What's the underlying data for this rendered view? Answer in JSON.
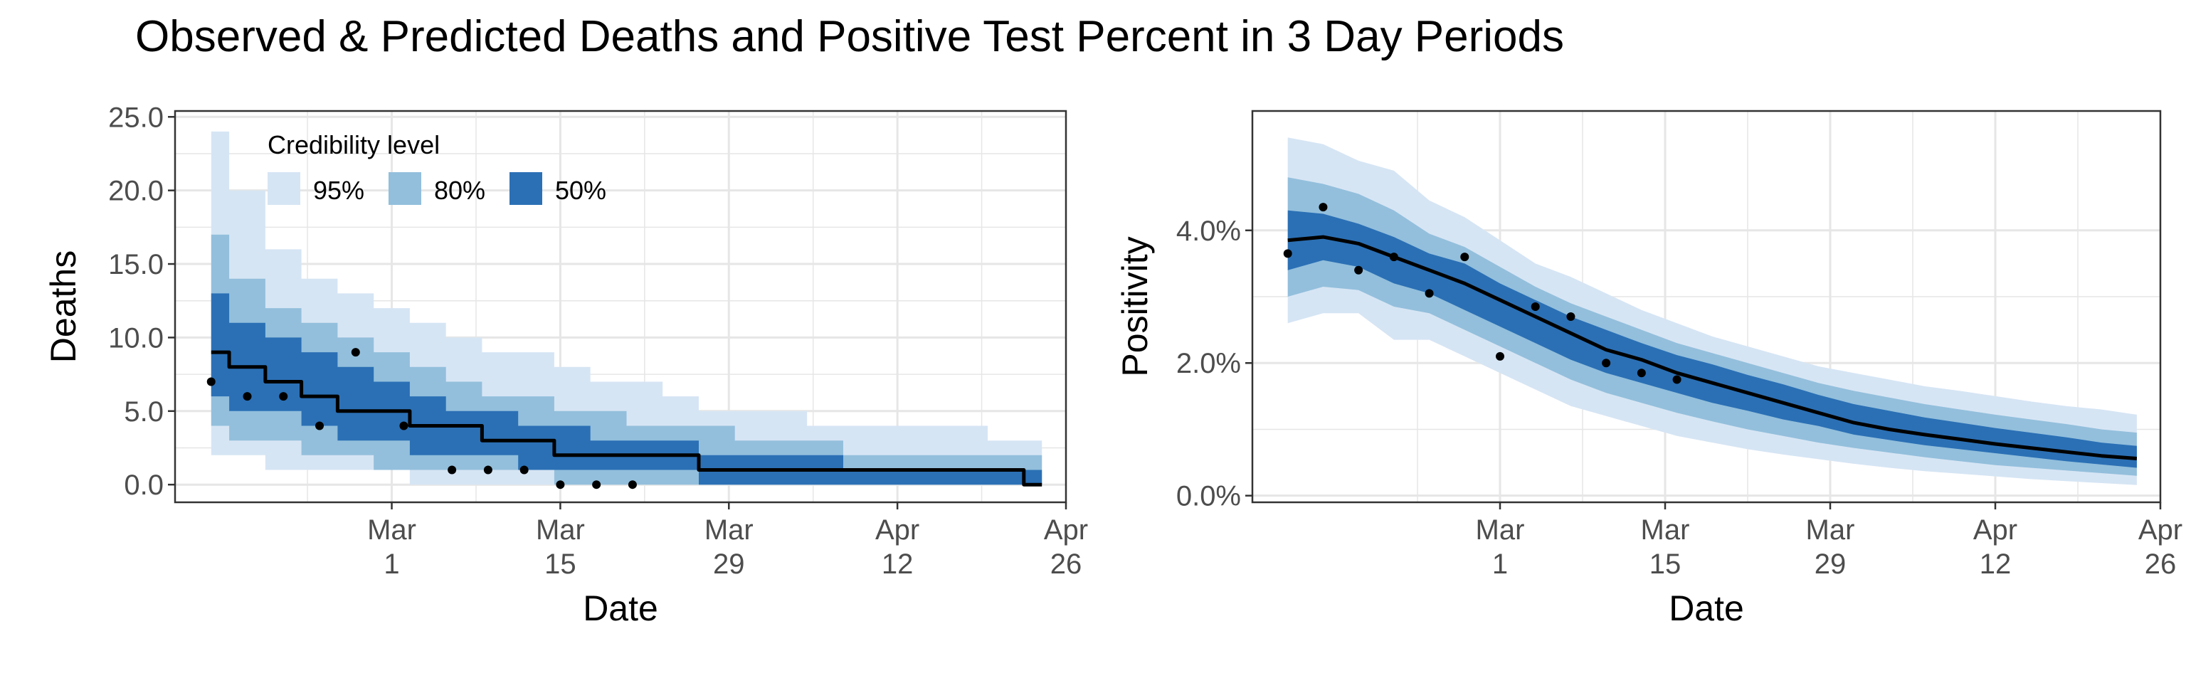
{
  "figure": {
    "title": "Observed & Predicted Deaths and Positive Test Percent in 3 Day Periods"
  },
  "colors": {
    "band95": "#d6e5f4",
    "band80": "#93bfdc",
    "band50": "#2b70b5",
    "median": "#000000",
    "points": "#000000",
    "grid": "#e6e6e6",
    "axis": "#333333"
  },
  "chart_data": [
    {
      "type": "area",
      "xlabel": "Date",
      "ylabel": "Deaths",
      "xlim": [
        "2020-02-12",
        "2020-04-26"
      ],
      "ylim": [
        -1.2,
        25.4
      ],
      "x_ticks": [
        {
          "date": "2020-03-01",
          "month": "Mar",
          "day": "1"
        },
        {
          "date": "2020-03-15",
          "month": "Mar",
          "day": "15"
        },
        {
          "date": "2020-03-29",
          "month": "Mar",
          "day": "29"
        },
        {
          "date": "2020-04-12",
          "month": "Apr",
          "day": "12"
        },
        {
          "date": "2020-04-26",
          "month": "Apr",
          "day": "26"
        }
      ],
      "y_ticks": [
        {
          "value": 0,
          "label": "0.0"
        },
        {
          "value": 5,
          "label": "5.0"
        },
        {
          "value": 10,
          "label": "10.0"
        },
        {
          "value": 15,
          "label": "15.0"
        },
        {
          "value": 20,
          "label": "20.0"
        },
        {
          "value": 25,
          "label": "25.0"
        }
      ],
      "legend": {
        "title": "Credibility level",
        "position": "top-left",
        "items": [
          {
            "label": "95%",
            "color": "#d6e5f4"
          },
          {
            "label": "80%",
            "color": "#93bfdc"
          },
          {
            "label": "50%",
            "color": "#2b70b5"
          }
        ]
      },
      "step": true,
      "dates": [
        "2020-02-15",
        "2020-02-18",
        "2020-02-21",
        "2020-02-24",
        "2020-02-27",
        "2020-03-01",
        "2020-03-04",
        "2020-03-07",
        "2020-03-10",
        "2020-03-13",
        "2020-03-16",
        "2020-03-19",
        "2020-03-22",
        "2020-03-25",
        "2020-03-28",
        "2020-03-31",
        "2020-04-03",
        "2020-04-06",
        "2020-04-09",
        "2020-04-12",
        "2020-04-15",
        "2020-04-18",
        "2020-04-21",
        "2020-04-24"
      ],
      "median": [
        9,
        8,
        7,
        6,
        5,
        5,
        4,
        4,
        3,
        3,
        2,
        2,
        2,
        2,
        1,
        1,
        1,
        1,
        1,
        1,
        1,
        1,
        1,
        0
      ],
      "lo95": [
        2,
        2,
        1,
        1,
        1,
        1,
        0,
        0,
        0,
        0,
        0,
        0,
        0,
        0,
        0,
        0,
        0,
        0,
        0,
        0,
        0,
        0,
        0,
        0
      ],
      "hi95": [
        24,
        20,
        16,
        14,
        13,
        12,
        11,
        10,
        9,
        9,
        8,
        7,
        7,
        6,
        5,
        5,
        5,
        4,
        4,
        4,
        4,
        4,
        3,
        3
      ],
      "lo80": [
        4,
        3,
        3,
        2,
        2,
        1,
        1,
        1,
        1,
        1,
        0,
        0,
        0,
        0,
        0,
        0,
        0,
        0,
        0,
        0,
        0,
        0,
        0,
        0
      ],
      "hi80": [
        17,
        14,
        12,
        11,
        10,
        9,
        8,
        7,
        6,
        6,
        5,
        5,
        4,
        4,
        4,
        3,
        3,
        3,
        2,
        2,
        2,
        2,
        2,
        2
      ],
      "lo50": [
        6,
        5,
        5,
        4,
        3,
        3,
        2,
        2,
        2,
        1,
        1,
        1,
        1,
        1,
        0,
        0,
        0,
        0,
        0,
        0,
        0,
        0,
        0,
        0
      ],
      "hi50": [
        13,
        11,
        10,
        9,
        8,
        7,
        6,
        5,
        5,
        4,
        4,
        3,
        3,
        3,
        2,
        2,
        2,
        2,
        1,
        1,
        1,
        1,
        1,
        1
      ],
      "observed": [
        {
          "date": "2020-02-15",
          "value": 7
        },
        {
          "date": "2020-02-18",
          "value": 6
        },
        {
          "date": "2020-02-21",
          "value": 6
        },
        {
          "date": "2020-02-24",
          "value": 4
        },
        {
          "date": "2020-02-27",
          "value": 9
        },
        {
          "date": "2020-03-02",
          "value": 4
        },
        {
          "date": "2020-03-06",
          "value": 1
        },
        {
          "date": "2020-03-09",
          "value": 1
        },
        {
          "date": "2020-03-12",
          "value": 1
        },
        {
          "date": "2020-03-15",
          "value": 0
        },
        {
          "date": "2020-03-18",
          "value": 0
        },
        {
          "date": "2020-03-21",
          "value": 0
        }
      ]
    },
    {
      "type": "area",
      "xlabel": "Date",
      "ylabel": "Positivity",
      "xlim": [
        "2020-02-09",
        "2020-04-26"
      ],
      "ylim": [
        -0.1,
        5.8
      ],
      "x_ticks": [
        {
          "date": "2020-03-01",
          "month": "Mar",
          "day": "1"
        },
        {
          "date": "2020-03-15",
          "month": "Mar",
          "day": "15"
        },
        {
          "date": "2020-03-29",
          "month": "Mar",
          "day": "29"
        },
        {
          "date": "2020-04-12",
          "month": "Apr",
          "day": "12"
        },
        {
          "date": "2020-04-26",
          "month": "Apr",
          "day": "26"
        }
      ],
      "y_ticks": [
        {
          "value": 0,
          "label": "0.0%"
        },
        {
          "value": 2,
          "label": "2.0%"
        },
        {
          "value": 4,
          "label": "4.0%"
        }
      ],
      "step": false,
      "dates": [
        "2020-02-12",
        "2020-02-15",
        "2020-02-18",
        "2020-02-21",
        "2020-02-24",
        "2020-02-27",
        "2020-03-01",
        "2020-03-04",
        "2020-03-07",
        "2020-03-10",
        "2020-03-13",
        "2020-03-16",
        "2020-03-19",
        "2020-03-22",
        "2020-03-25",
        "2020-03-28",
        "2020-03-31",
        "2020-04-03",
        "2020-04-06",
        "2020-04-09",
        "2020-04-12",
        "2020-04-15",
        "2020-04-18",
        "2020-04-21",
        "2020-04-24"
      ],
      "median": [
        3.85,
        3.9,
        3.8,
        3.6,
        3.4,
        3.2,
        2.95,
        2.7,
        2.45,
        2.2,
        2.05,
        1.85,
        1.7,
        1.55,
        1.4,
        1.25,
        1.1,
        1.0,
        0.92,
        0.85,
        0.78,
        0.72,
        0.66,
        0.6,
        0.56
      ],
      "lo95": [
        2.6,
        2.75,
        2.75,
        2.35,
        2.35,
        2.1,
        1.85,
        1.6,
        1.35,
        1.2,
        1.05,
        0.9,
        0.8,
        0.7,
        0.62,
        0.55,
        0.48,
        0.42,
        0.37,
        0.33,
        0.29,
        0.25,
        0.22,
        0.19,
        0.16
      ],
      "hi95": [
        5.4,
        5.3,
        5.05,
        4.9,
        4.45,
        4.2,
        3.85,
        3.5,
        3.3,
        3.05,
        2.8,
        2.6,
        2.4,
        2.25,
        2.1,
        1.95,
        1.85,
        1.75,
        1.65,
        1.58,
        1.5,
        1.42,
        1.35,
        1.3,
        1.22
      ],
      "lo80": [
        3.0,
        3.15,
        3.1,
        2.85,
        2.75,
        2.5,
        2.25,
        2.0,
        1.75,
        1.55,
        1.4,
        1.25,
        1.12,
        1.0,
        0.9,
        0.8,
        0.72,
        0.65,
        0.58,
        0.52,
        0.46,
        0.42,
        0.38,
        0.34,
        0.3
      ],
      "hi80": [
        4.8,
        4.7,
        4.55,
        4.3,
        3.95,
        3.75,
        3.45,
        3.15,
        2.9,
        2.7,
        2.5,
        2.3,
        2.15,
        2.0,
        1.85,
        1.7,
        1.58,
        1.48,
        1.38,
        1.3,
        1.22,
        1.15,
        1.08,
        1.0,
        0.95
      ],
      "lo50": [
        3.4,
        3.55,
        3.45,
        3.2,
        3.05,
        2.8,
        2.55,
        2.3,
        2.05,
        1.85,
        1.7,
        1.55,
        1.4,
        1.28,
        1.15,
        1.05,
        0.92,
        0.84,
        0.76,
        0.7,
        0.64,
        0.58,
        0.52,
        0.47,
        0.42
      ],
      "hi50": [
        4.3,
        4.25,
        4.1,
        3.9,
        3.65,
        3.5,
        3.2,
        2.95,
        2.7,
        2.5,
        2.3,
        2.12,
        1.98,
        1.82,
        1.68,
        1.52,
        1.38,
        1.28,
        1.18,
        1.1,
        1.02,
        0.95,
        0.88,
        0.8,
        0.75
      ],
      "observed": [
        {
          "date": "2020-02-12",
          "value": 3.65
        },
        {
          "date": "2020-02-15",
          "value": 4.35
        },
        {
          "date": "2020-02-18",
          "value": 3.4
        },
        {
          "date": "2020-02-21",
          "value": 3.6
        },
        {
          "date": "2020-02-24",
          "value": 3.05
        },
        {
          "date": "2020-02-27",
          "value": 3.6
        },
        {
          "date": "2020-03-01",
          "value": 2.1
        },
        {
          "date": "2020-03-04",
          "value": 2.85
        },
        {
          "date": "2020-03-07",
          "value": 2.7
        },
        {
          "date": "2020-03-10",
          "value": 2.0
        },
        {
          "date": "2020-03-13",
          "value": 1.85
        },
        {
          "date": "2020-03-16",
          "value": 1.75
        }
      ]
    }
  ]
}
